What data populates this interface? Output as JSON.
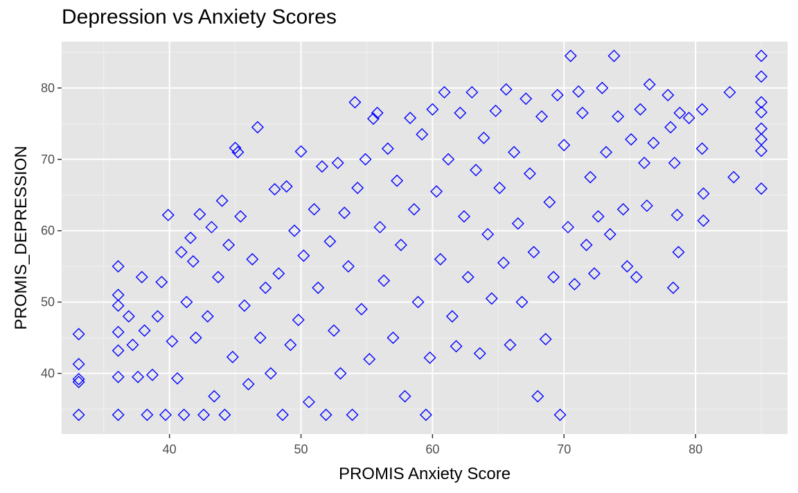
{
  "chart_data": {
    "type": "scatter",
    "title": "Depression vs Anxiety Scores",
    "xlabel": "PROMIS Anxiety Score",
    "ylabel": "PROMIS_DEPRESSION",
    "xlim": [
      31.8,
      87.0
    ],
    "ylim": [
      31.5,
      86.5
    ],
    "x_ticks": [
      40,
      50,
      60,
      70,
      80
    ],
    "y_ticks": [
      40,
      50,
      60,
      70,
      80
    ],
    "grid": true,
    "legend": "none",
    "marker": "diamond-open",
    "series": [
      {
        "points": [
          [
            33.1,
            45.5
          ],
          [
            33.1,
            41.3
          ],
          [
            33.1,
            39.2
          ],
          [
            33.1,
            38.8
          ],
          [
            33.1,
            34.2
          ],
          [
            36.1,
            55.0
          ],
          [
            36.1,
            51.0
          ],
          [
            36.1,
            49.5
          ],
          [
            36.1,
            45.8
          ],
          [
            36.1,
            43.2
          ],
          [
            36.1,
            39.5
          ],
          [
            36.1,
            34.2
          ],
          [
            36.9,
            48.0
          ],
          [
            37.2,
            44.0
          ],
          [
            37.6,
            39.5
          ],
          [
            37.9,
            53.5
          ],
          [
            38.1,
            46.0
          ],
          [
            38.3,
            34.2
          ],
          [
            38.7,
            39.8
          ],
          [
            39.1,
            48.0
          ],
          [
            39.4,
            52.8
          ],
          [
            39.7,
            34.2
          ],
          [
            39.9,
            62.2
          ],
          [
            40.2,
            44.5
          ],
          [
            40.6,
            39.3
          ],
          [
            40.9,
            57.0
          ],
          [
            41.1,
            34.2
          ],
          [
            41.3,
            50.0
          ],
          [
            41.6,
            59.0
          ],
          [
            41.8,
            55.7
          ],
          [
            42.0,
            45.0
          ],
          [
            42.3,
            62.3
          ],
          [
            42.6,
            34.2
          ],
          [
            42.9,
            48.0
          ],
          [
            43.2,
            60.5
          ],
          [
            43.4,
            36.8
          ],
          [
            43.7,
            53.5
          ],
          [
            44.0,
            64.2
          ],
          [
            44.2,
            34.2
          ],
          [
            44.5,
            58.0
          ],
          [
            44.8,
            42.3
          ],
          [
            45.0,
            71.6
          ],
          [
            45.2,
            71.0
          ],
          [
            45.4,
            62.0
          ],
          [
            45.7,
            49.5
          ],
          [
            46.0,
            38.5
          ],
          [
            46.3,
            56.0
          ],
          [
            46.7,
            74.5
          ],
          [
            46.9,
            45.0
          ],
          [
            47.3,
            52.0
          ],
          [
            47.7,
            40.0
          ],
          [
            48.0,
            65.8
          ],
          [
            48.3,
            54.0
          ],
          [
            48.6,
            34.2
          ],
          [
            48.9,
            66.2
          ],
          [
            49.2,
            44.0
          ],
          [
            49.5,
            60.0
          ],
          [
            49.8,
            47.5
          ],
          [
            50.0,
            71.1
          ],
          [
            50.2,
            56.5
          ],
          [
            50.6,
            36.0
          ],
          [
            51.0,
            63.0
          ],
          [
            51.3,
            52.0
          ],
          [
            51.6,
            69.0
          ],
          [
            51.9,
            34.2
          ],
          [
            52.2,
            58.5
          ],
          [
            52.5,
            46.0
          ],
          [
            52.8,
            69.5
          ],
          [
            53.0,
            40.0
          ],
          [
            53.3,
            62.5
          ],
          [
            53.6,
            55.0
          ],
          [
            53.9,
            34.2
          ],
          [
            54.1,
            78.0
          ],
          [
            54.3,
            66.0
          ],
          [
            54.6,
            49.0
          ],
          [
            54.9,
            70.0
          ],
          [
            55.2,
            42.0
          ],
          [
            55.5,
            75.7
          ],
          [
            55.8,
            76.5
          ],
          [
            56.0,
            60.5
          ],
          [
            56.3,
            53.0
          ],
          [
            56.6,
            71.5
          ],
          [
            57.0,
            45.0
          ],
          [
            57.3,
            67.0
          ],
          [
            57.6,
            58.0
          ],
          [
            57.9,
            36.8
          ],
          [
            58.3,
            75.8
          ],
          [
            58.6,
            63.0
          ],
          [
            58.9,
            50.0
          ],
          [
            59.2,
            73.5
          ],
          [
            59.5,
            34.2
          ],
          [
            59.8,
            42.2
          ],
          [
            60.0,
            77.0
          ],
          [
            60.3,
            65.5
          ],
          [
            60.6,
            56.0
          ],
          [
            60.9,
            79.4
          ],
          [
            61.2,
            70.0
          ],
          [
            61.5,
            48.0
          ],
          [
            61.8,
            43.8
          ],
          [
            62.1,
            76.5
          ],
          [
            62.4,
            62.0
          ],
          [
            62.7,
            53.5
          ],
          [
            63.0,
            79.4
          ],
          [
            63.3,
            68.5
          ],
          [
            63.6,
            42.8
          ],
          [
            63.9,
            73.0
          ],
          [
            64.2,
            59.5
          ],
          [
            64.5,
            50.5
          ],
          [
            64.8,
            76.8
          ],
          [
            65.1,
            66.0
          ],
          [
            65.4,
            55.5
          ],
          [
            65.6,
            79.8
          ],
          [
            65.9,
            44.0
          ],
          [
            66.2,
            71.0
          ],
          [
            66.5,
            61.0
          ],
          [
            66.8,
            50.0
          ],
          [
            67.1,
            78.5
          ],
          [
            67.4,
            68.0
          ],
          [
            67.7,
            57.0
          ],
          [
            68.0,
            36.8
          ],
          [
            68.3,
            76.0
          ],
          [
            68.6,
            44.8
          ],
          [
            68.9,
            64.0
          ],
          [
            69.2,
            53.5
          ],
          [
            69.5,
            79.0
          ],
          [
            69.7,
            34.2
          ],
          [
            70.0,
            72.0
          ],
          [
            70.3,
            60.5
          ],
          [
            70.5,
            84.5
          ],
          [
            70.8,
            52.5
          ],
          [
            71.1,
            79.5
          ],
          [
            71.4,
            76.5
          ],
          [
            71.7,
            58.0
          ],
          [
            72.0,
            67.5
          ],
          [
            72.3,
            54.0
          ],
          [
            72.6,
            62.0
          ],
          [
            72.9,
            80.0
          ],
          [
            73.2,
            71.0
          ],
          [
            73.5,
            59.5
          ],
          [
            73.8,
            84.5
          ],
          [
            74.1,
            76.0
          ],
          [
            74.5,
            63.0
          ],
          [
            74.8,
            55.0
          ],
          [
            75.1,
            72.8
          ],
          [
            75.5,
            53.5
          ],
          [
            75.8,
            77.0
          ],
          [
            76.1,
            69.5
          ],
          [
            76.3,
            63.5
          ],
          [
            76.5,
            80.5
          ],
          [
            76.8,
            72.3
          ],
          [
            77.9,
            79.0
          ],
          [
            78.1,
            74.5
          ],
          [
            78.3,
            52.0
          ],
          [
            78.4,
            69.5
          ],
          [
            78.6,
            62.2
          ],
          [
            78.7,
            57.0
          ],
          [
            78.8,
            76.5
          ],
          [
            79.5,
            75.8
          ],
          [
            80.5,
            77.0
          ],
          [
            80.5,
            71.5
          ],
          [
            80.6,
            65.2
          ],
          [
            80.6,
            61.4
          ],
          [
            82.6,
            79.4
          ],
          [
            82.9,
            67.5
          ],
          [
            85.0,
            84.5
          ],
          [
            85.0,
            81.6
          ],
          [
            85.0,
            78.0
          ],
          [
            85.0,
            76.6
          ],
          [
            85.0,
            74.3
          ],
          [
            85.0,
            72.8
          ],
          [
            85.0,
            71.2
          ],
          [
            85.0,
            65.9
          ]
        ]
      }
    ]
  },
  "colors": {
    "panel": "#e5e5e5",
    "grid_major": "#ffffff",
    "grid_minor": "#f1f1f1",
    "marker": "#0000ff"
  }
}
